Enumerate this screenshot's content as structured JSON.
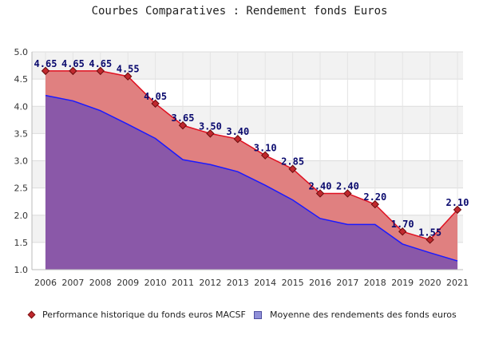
{
  "title": "Courbes Comparatives : Rendement fonds Euros",
  "chart_data": {
    "type": "area",
    "x": [
      "2006",
      "2007",
      "2008",
      "2009",
      "2010",
      "2011",
      "2012",
      "2013",
      "2014",
      "2015",
      "2016",
      "2017",
      "2018",
      "2019",
      "2020",
      "2021"
    ],
    "ylim": [
      1.0,
      5.0
    ],
    "yticks": [
      "1.0",
      "1.5",
      "2.0",
      "2.5",
      "3.0",
      "3.5",
      "4.0",
      "4.5",
      "5.0"
    ],
    "grid": true,
    "legend_position": "bottom",
    "series": [
      {
        "name": "Performance historique du fonds euros MACSF",
        "values": [
          4.65,
          4.65,
          4.65,
          4.55,
          4.05,
          3.65,
          3.5,
          3.4,
          3.1,
          2.85,
          2.4,
          2.4,
          2.2,
          1.7,
          1.55,
          2.1
        ],
        "labels": [
          "4.65",
          "4.65",
          "4.65",
          "4.55",
          "4.05",
          "3.65",
          "3.50",
          "3.40",
          "3.10",
          "2.85",
          "2.40",
          "2.40",
          "2.20",
          "1.70",
          "1.55",
          "2.10"
        ],
        "line_color": "#e01020",
        "fill_color": "#e08080",
        "marker_color": "#c0282e"
      },
      {
        "name": "Moyenne des rendements des fonds euros",
        "values": [
          4.2,
          4.1,
          3.92,
          3.67,
          3.41,
          3.02,
          2.93,
          2.8,
          2.55,
          2.28,
          1.94,
          1.83,
          1.83,
          1.47,
          1.31,
          1.16
        ],
        "line_color": "#1a1aff",
        "fill_color": "#8a58a8"
      }
    ]
  }
}
